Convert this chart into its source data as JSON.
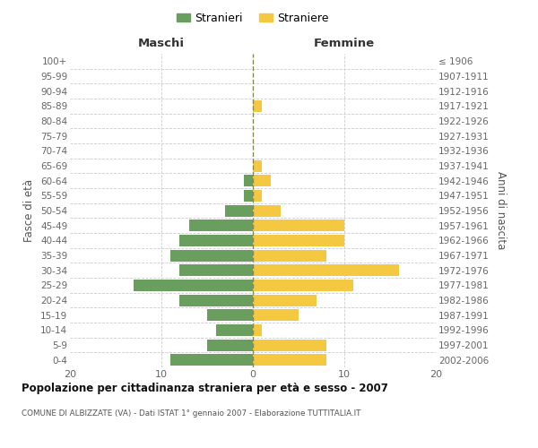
{
  "age_groups": [
    "0-4",
    "5-9",
    "10-14",
    "15-19",
    "20-24",
    "25-29",
    "30-34",
    "35-39",
    "40-44",
    "45-49",
    "50-54",
    "55-59",
    "60-64",
    "65-69",
    "70-74",
    "75-79",
    "80-84",
    "85-89",
    "90-94",
    "95-99",
    "100+"
  ],
  "birth_years": [
    "2002-2006",
    "1997-2001",
    "1992-1996",
    "1987-1991",
    "1982-1986",
    "1977-1981",
    "1972-1976",
    "1967-1971",
    "1962-1966",
    "1957-1961",
    "1952-1956",
    "1947-1951",
    "1942-1946",
    "1937-1941",
    "1932-1936",
    "1927-1931",
    "1922-1926",
    "1917-1921",
    "1912-1916",
    "1907-1911",
    "≤ 1906"
  ],
  "maschi": [
    9,
    5,
    4,
    5,
    8,
    13,
    8,
    9,
    8,
    7,
    3,
    1,
    1,
    0,
    0,
    0,
    0,
    0,
    0,
    0,
    0
  ],
  "femmine": [
    8,
    8,
    1,
    5,
    7,
    11,
    16,
    8,
    10,
    10,
    3,
    1,
    2,
    1,
    0,
    0,
    0,
    1,
    0,
    0,
    0
  ],
  "maschi_color": "#6a9e5e",
  "femmine_color": "#f5c842",
  "bg_color": "#ffffff",
  "grid_color": "#cccccc",
  "title": "Popolazione per cittadinanza straniera per età e sesso - 2007",
  "subtitle": "COMUNE DI ALBIZZATE (VA) - Dati ISTAT 1° gennaio 2007 - Elaborazione TUTTITALIA.IT",
  "legend_maschi": "Stranieri",
  "legend_femmine": "Straniere",
  "header_left": "Maschi",
  "header_right": "Femmine",
  "ylabel_left": "Fasce di età",
  "ylabel_right": "Anni di nascita",
  "xlim": 20
}
